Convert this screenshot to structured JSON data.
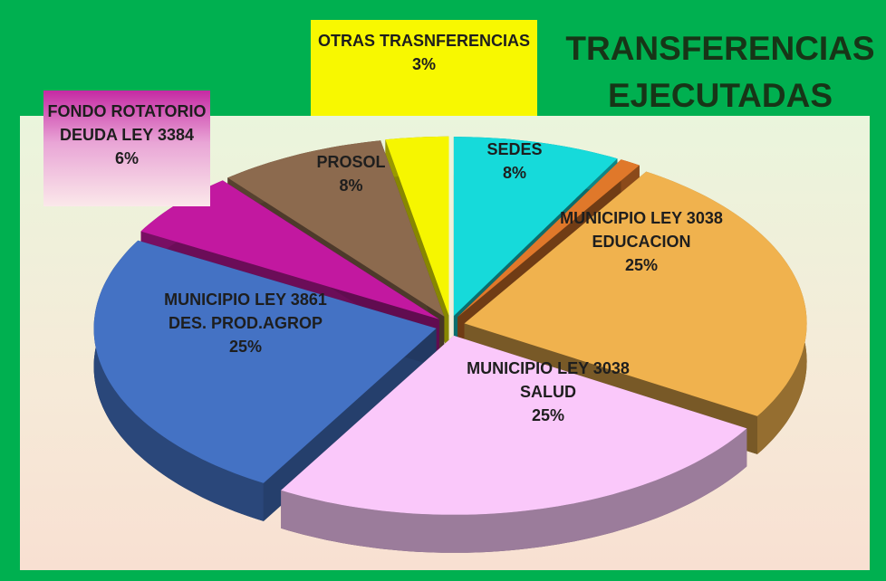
{
  "chart_data": {
    "type": "pie",
    "title": "TRANSFERENCIAS EJECUTADAS",
    "categories": [
      "SEDES",
      null,
      "MUNICIPIO LEY 3038 EDUCACION",
      "MUNICIPIO LEY 3038 SALUD",
      "MUNICIPIO LEY 3861 DES. PROD.AGROP",
      "FONDO ROTATORIO DEUDA LEY 3384",
      "PROSOL",
      "OTRAS TRASNFERENCIAS"
    ],
    "values": [
      8,
      1,
      25,
      25,
      25,
      6,
      8,
      3
    ],
    "value_labels": [
      "8%",
      null,
      "25%",
      "25%",
      "25%",
      "6%",
      "8%",
      "3%"
    ],
    "colors": [
      "#16dada",
      "#e0782a",
      "#f0b24e",
      "#fac8fa",
      "#4472c4",
      "#c218a0",
      "#8c6a4e",
      "#f6f600"
    ]
  }
}
